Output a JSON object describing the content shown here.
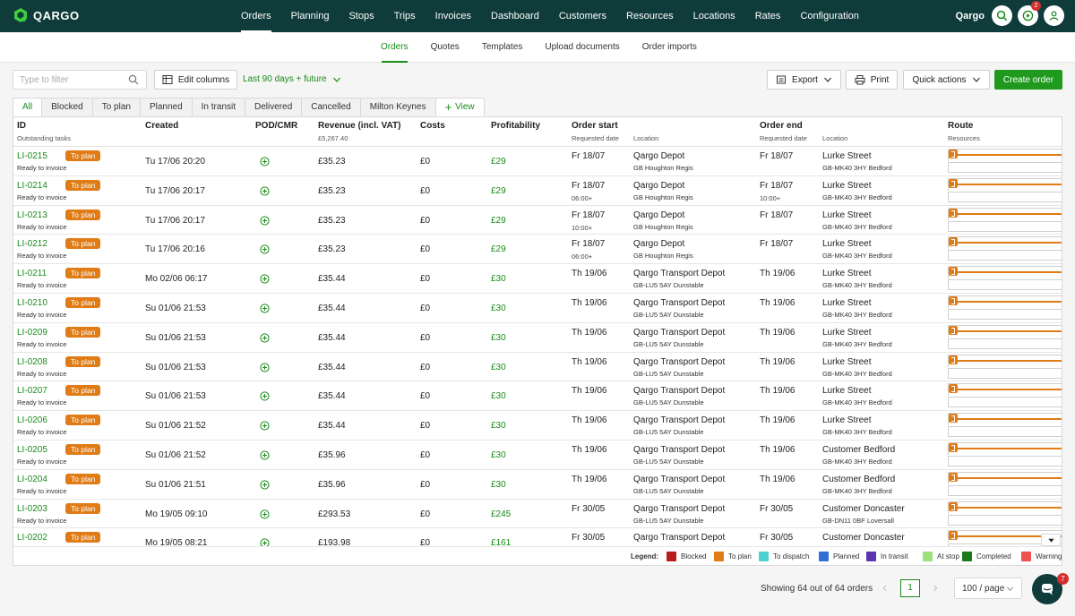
{
  "app": {
    "brand": "QARGO",
    "user_name": "Qargo",
    "notification_count": "2"
  },
  "colors": {
    "nav_bg": "#0f3b3b",
    "accent": "#1a8a1a",
    "to_plan": "#e07b16"
  },
  "main_nav": [
    {
      "label": "Orders",
      "active": true
    },
    {
      "label": "Planning"
    },
    {
      "label": "Stops"
    },
    {
      "label": "Trips"
    },
    {
      "label": "Invoices"
    },
    {
      "label": "Dashboard"
    },
    {
      "label": "Customers"
    },
    {
      "label": "Resources"
    },
    {
      "label": "Locations"
    },
    {
      "label": "Rates"
    },
    {
      "label": "Configuration"
    }
  ],
  "sub_nav": [
    {
      "label": "Orders",
      "active": true
    },
    {
      "label": "Quotes"
    },
    {
      "label": "Templates"
    },
    {
      "label": "Upload documents"
    },
    {
      "label": "Order imports"
    }
  ],
  "toolbar": {
    "filter_placeholder": "Type to filter",
    "edit_columns": "Edit columns",
    "date_range": "Last 90 days + future",
    "export": "Export",
    "print": "Print",
    "quick_actions": "Quick actions",
    "create_order": "Create order"
  },
  "tabs": [
    {
      "label": "All",
      "active": true
    },
    {
      "label": "Blocked"
    },
    {
      "label": "To plan"
    },
    {
      "label": "Planned"
    },
    {
      "label": "In transit"
    },
    {
      "label": "Delivered"
    },
    {
      "label": "Cancelled"
    },
    {
      "label": "Milton Keynes"
    },
    {
      "label": "View"
    }
  ],
  "columns": {
    "id": "ID",
    "id_sub": "Outstanding tasks",
    "created": "Created",
    "pod": "POD/CMR",
    "revenue": "Revenue (incl. VAT)",
    "revenue_sub": "£5,267.40",
    "costs": "Costs",
    "profitability": "Profitability",
    "order_start": "Order start",
    "start_date_sub": "Requested date",
    "start_loc_sub": "Location",
    "order_end": "Order end",
    "end_date_sub": "Requested date",
    "end_loc_sub": "Location",
    "route": "Route",
    "route_sub": "Resources"
  },
  "rows": [
    {
      "id": "LI-0215",
      "status": "To plan",
      "task": "Ready to invoice",
      "created": "Tu 17/06 20:20",
      "revenue": "£35.23",
      "costs": "£0",
      "profit": "£29",
      "start_date": "Fr 18/07",
      "start_time": "",
      "start_loc": "Qargo Depot",
      "start_addr": "GB Houghton Regis",
      "end_date": "Fr 18/07",
      "end_time": "",
      "end_loc": "Lurke Street",
      "end_addr": "GB-MK40 3HY Bedford"
    },
    {
      "id": "LI-0214",
      "status": "To plan",
      "task": "Ready to invoice",
      "created": "Tu 17/06 20:17",
      "revenue": "£35.23",
      "costs": "£0",
      "profit": "£29",
      "start_date": "Fr 18/07",
      "start_time": "06:00+",
      "start_loc": "Qargo Depot",
      "start_addr": "GB Houghton Regis",
      "end_date": "Fr 18/07",
      "end_time": "10:00+",
      "end_loc": "Lurke Street",
      "end_addr": "GB-MK40 3HY Bedford"
    },
    {
      "id": "LI-0213",
      "status": "To plan",
      "task": "Ready to invoice",
      "created": "Tu 17/06 20:17",
      "revenue": "£35.23",
      "costs": "£0",
      "profit": "£29",
      "start_date": "Fr 18/07",
      "start_time": "10:00+",
      "start_loc": "Qargo Depot",
      "start_addr": "GB Houghton Regis",
      "end_date": "Fr 18/07",
      "end_time": "",
      "end_loc": "Lurke Street",
      "end_addr": "GB-MK40 3HY Bedford"
    },
    {
      "id": "LI-0212",
      "status": "To plan",
      "task": "Ready to invoice",
      "created": "Tu 17/06 20:16",
      "revenue": "£35.23",
      "costs": "£0",
      "profit": "£29",
      "start_date": "Fr 18/07",
      "start_time": "06:00+",
      "start_loc": "Qargo Depot",
      "start_addr": "GB Houghton Regis",
      "end_date": "Fr 18/07",
      "end_time": "",
      "end_loc": "Lurke Street",
      "end_addr": "GB-MK40 3HY Bedford"
    },
    {
      "id": "LI-0211",
      "status": "To plan",
      "task": "Ready to invoice",
      "created": "Mo 02/06 06:17",
      "revenue": "£35.44",
      "costs": "£0",
      "profit": "£30",
      "start_date": "Th 19/06",
      "start_time": "",
      "start_loc": "Qargo Transport Depot",
      "start_addr": "GB-LU5 5AY Dunstable",
      "end_date": "Th 19/06",
      "end_time": "",
      "end_loc": "Lurke Street",
      "end_addr": "GB-MK40 3HY Bedford"
    },
    {
      "id": "LI-0210",
      "status": "To plan",
      "task": "Ready to invoice",
      "created": "Su 01/06 21:53",
      "revenue": "£35.44",
      "costs": "£0",
      "profit": "£30",
      "start_date": "Th 19/06",
      "start_time": "",
      "start_loc": "Qargo Transport Depot",
      "start_addr": "GB-LU5 5AY Dunstable",
      "end_date": "Th 19/06",
      "end_time": "",
      "end_loc": "Lurke Street",
      "end_addr": "GB-MK40 3HY Bedford"
    },
    {
      "id": "LI-0209",
      "status": "To plan",
      "task": "Ready to invoice",
      "created": "Su 01/06 21:53",
      "revenue": "£35.44",
      "costs": "£0",
      "profit": "£30",
      "start_date": "Th 19/06",
      "start_time": "",
      "start_loc": "Qargo Transport Depot",
      "start_addr": "GB-LU5 5AY Dunstable",
      "end_date": "Th 19/06",
      "end_time": "",
      "end_loc": "Lurke Street",
      "end_addr": "GB-MK40 3HY Bedford"
    },
    {
      "id": "LI-0208",
      "status": "To plan",
      "task": "Ready to invoice",
      "created": "Su 01/06 21:53",
      "revenue": "£35.44",
      "costs": "£0",
      "profit": "£30",
      "start_date": "Th 19/06",
      "start_time": "",
      "start_loc": "Qargo Transport Depot",
      "start_addr": "GB-LU5 5AY Dunstable",
      "end_date": "Th 19/06",
      "end_time": "",
      "end_loc": "Lurke Street",
      "end_addr": "GB-MK40 3HY Bedford"
    },
    {
      "id": "LI-0207",
      "status": "To plan",
      "task": "Ready to invoice",
      "created": "Su 01/06 21:53",
      "revenue": "£35.44",
      "costs": "£0",
      "profit": "£30",
      "start_date": "Th 19/06",
      "start_time": "",
      "start_loc": "Qargo Transport Depot",
      "start_addr": "GB-LU5 5AY Dunstable",
      "end_date": "Th 19/06",
      "end_time": "",
      "end_loc": "Lurke Street",
      "end_addr": "GB-MK40 3HY Bedford"
    },
    {
      "id": "LI-0206",
      "status": "To plan",
      "task": "Ready to invoice",
      "created": "Su 01/06 21:52",
      "revenue": "£35.44",
      "costs": "£0",
      "profit": "£30",
      "start_date": "Th 19/06",
      "start_time": "",
      "start_loc": "Qargo Transport Depot",
      "start_addr": "GB-LU5 5AY Dunstable",
      "end_date": "Th 19/06",
      "end_time": "",
      "end_loc": "Lurke Street",
      "end_addr": "GB-MK40 3HY Bedford"
    },
    {
      "id": "LI-0205",
      "status": "To plan",
      "task": "Ready to invoice",
      "created": "Su 01/06 21:52",
      "revenue": "£35.96",
      "costs": "£0",
      "profit": "£30",
      "start_date": "Th 19/06",
      "start_time": "",
      "start_loc": "Qargo Transport Depot",
      "start_addr": "GB-LU5 5AY Dunstable",
      "end_date": "Th 19/06",
      "end_time": "",
      "end_loc": "Customer Bedford",
      "end_addr": "GB-MK40 3HY Bedford"
    },
    {
      "id": "LI-0204",
      "status": "To plan",
      "task": "Ready to invoice",
      "created": "Su 01/06 21:51",
      "revenue": "£35.96",
      "costs": "£0",
      "profit": "£30",
      "start_date": "Th 19/06",
      "start_time": "",
      "start_loc": "Qargo Transport Depot",
      "start_addr": "GB-LU5 5AY Dunstable",
      "end_date": "Th 19/06",
      "end_time": "",
      "end_loc": "Customer Bedford",
      "end_addr": "GB-MK40 3HY Bedford"
    },
    {
      "id": "LI-0203",
      "status": "To plan",
      "task": "Ready to invoice",
      "created": "Mo 19/05 09:10",
      "revenue": "£293.53",
      "costs": "£0",
      "profit": "£245",
      "start_date": "Fr 30/05",
      "start_time": "",
      "start_loc": "Qargo Transport Depot",
      "start_addr": "GB-LU5 5AY Dunstable",
      "end_date": "Fr 30/05",
      "end_time": "",
      "end_loc": "Customer Doncaster",
      "end_addr": "GB-DN11 0BF Loversall"
    },
    {
      "id": "LI-0202",
      "status": "To plan",
      "task": "",
      "created": "Mo 19/05 08:21",
      "revenue": "£193.98",
      "costs": "£0",
      "profit": "£161",
      "start_date": "Fr 30/05",
      "start_time": "",
      "start_loc": "Qargo Transport Depot",
      "start_addr": "",
      "end_date": "Fr 30/05",
      "end_time": "",
      "end_loc": "Customer Doncaster",
      "end_addr": ""
    }
  ],
  "legend": {
    "title": "Legend:",
    "items": [
      {
        "label": "Blocked",
        "color": "#b71c1c"
      },
      {
        "label": "To plan",
        "color": "#e07b16"
      },
      {
        "label": "To dispatch",
        "color": "#4dd0d0"
      },
      {
        "label": "Planned",
        "color": "#2f6fd6"
      },
      {
        "label": "In transit",
        "color": "#5e35b1"
      },
      {
        "label": "At stop",
        "color": "#9ce27a"
      },
      {
        "label": "Completed",
        "color": "#1b7a1b"
      },
      {
        "label": "Warning",
        "color": "#ef5350"
      }
    ]
  },
  "pagination": {
    "summary": "Showing 64 out of 64 orders",
    "page": "1",
    "per_page": "100 / page"
  },
  "chat": {
    "badge": "7"
  }
}
